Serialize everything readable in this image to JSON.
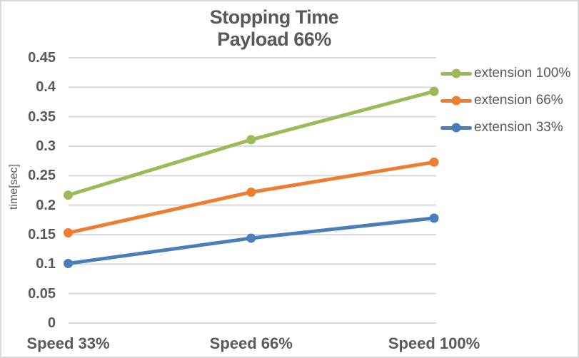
{
  "window": {
    "background": "#ffffff",
    "frame_border_color": "#d9d9d9",
    "text_color": "#595959"
  },
  "chart_data": {
    "type": "line",
    "title": "Stopping Time",
    "subtitle": "Payload 66%",
    "ylabel": "time[sec]",
    "xlabel": "",
    "categories": [
      "Speed 33%",
      "Speed 66%",
      "Speed 100%"
    ],
    "series": [
      {
        "name": "extension 100%",
        "color": "#9bbb59",
        "values": [
          0.217,
          0.311,
          0.393
        ]
      },
      {
        "name": "extension 66%",
        "color": "#ed7d31",
        "values": [
          0.153,
          0.222,
          0.273
        ]
      },
      {
        "name": "extension 33%",
        "color": "#4a7ebb",
        "values": [
          0.101,
          0.144,
          0.178
        ]
      }
    ],
    "ylim": [
      0,
      0.45
    ],
    "ytick_step": 0.05,
    "yticks": [
      "0",
      "0.05",
      "0.1",
      "0.15",
      "0.2",
      "0.25",
      "0.3",
      "0.35",
      "0.4",
      "0.45"
    ],
    "grid": true,
    "gridline_color": "#d9d9d9",
    "legend_position": "right",
    "legend_items": [
      "extension 100%",
      "extension 66%",
      "extension 33%"
    ]
  }
}
